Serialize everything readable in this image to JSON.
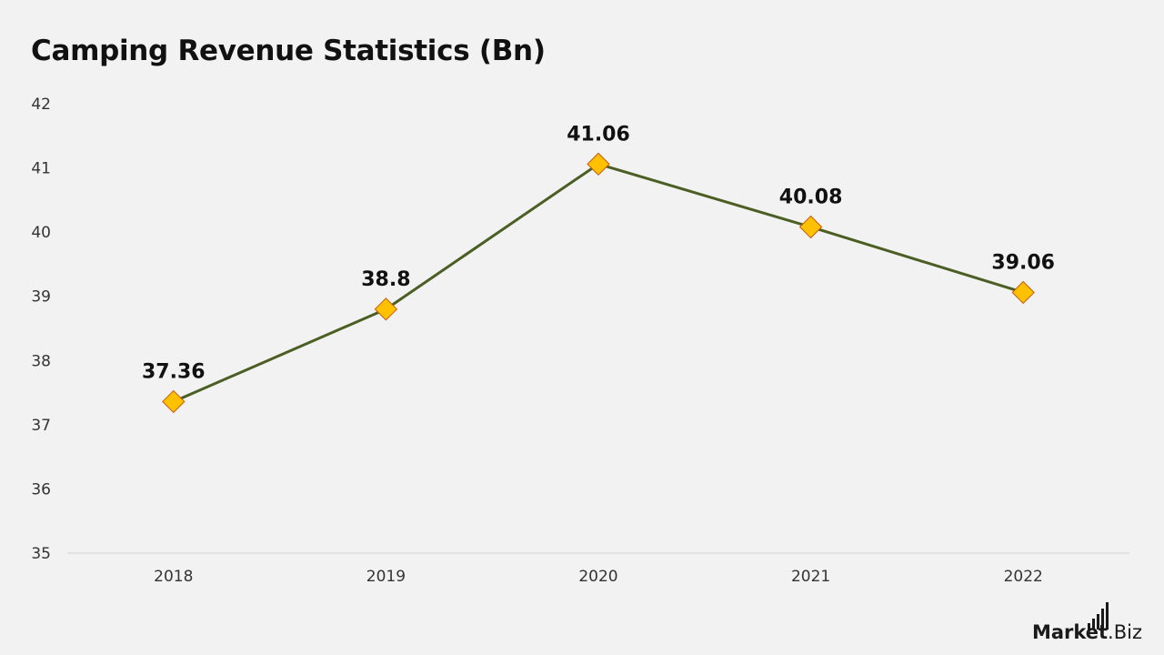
{
  "chart_data": {
    "type": "line",
    "title": "Camping Revenue Statistics (Bn)",
    "xlabel": "",
    "ylabel": "",
    "categories": [
      "2018",
      "2019",
      "2020",
      "2021",
      "2022"
    ],
    "series": [
      {
        "values": [
          37.36,
          38.8,
          41.06,
          40.08,
          39.06
        ],
        "data_labels": [
          "37.36",
          "38.8",
          "41.06",
          "40.08",
          "39.06"
        ],
        "line_color": "#4b5e23",
        "marker": "diamond",
        "marker_fill": "#ffc000",
        "marker_stroke": "#c55a11"
      }
    ],
    "ylim": [
      35,
      42
    ],
    "yticks": [
      35,
      36,
      37,
      38,
      39,
      40,
      41,
      42
    ],
    "ytick_labels": [
      "35",
      "36",
      "37",
      "38",
      "39",
      "40",
      "41",
      "42"
    ],
    "grid": false,
    "legend": "none"
  },
  "brand": {
    "primary": "Market",
    "secondary": ".Biz"
  }
}
